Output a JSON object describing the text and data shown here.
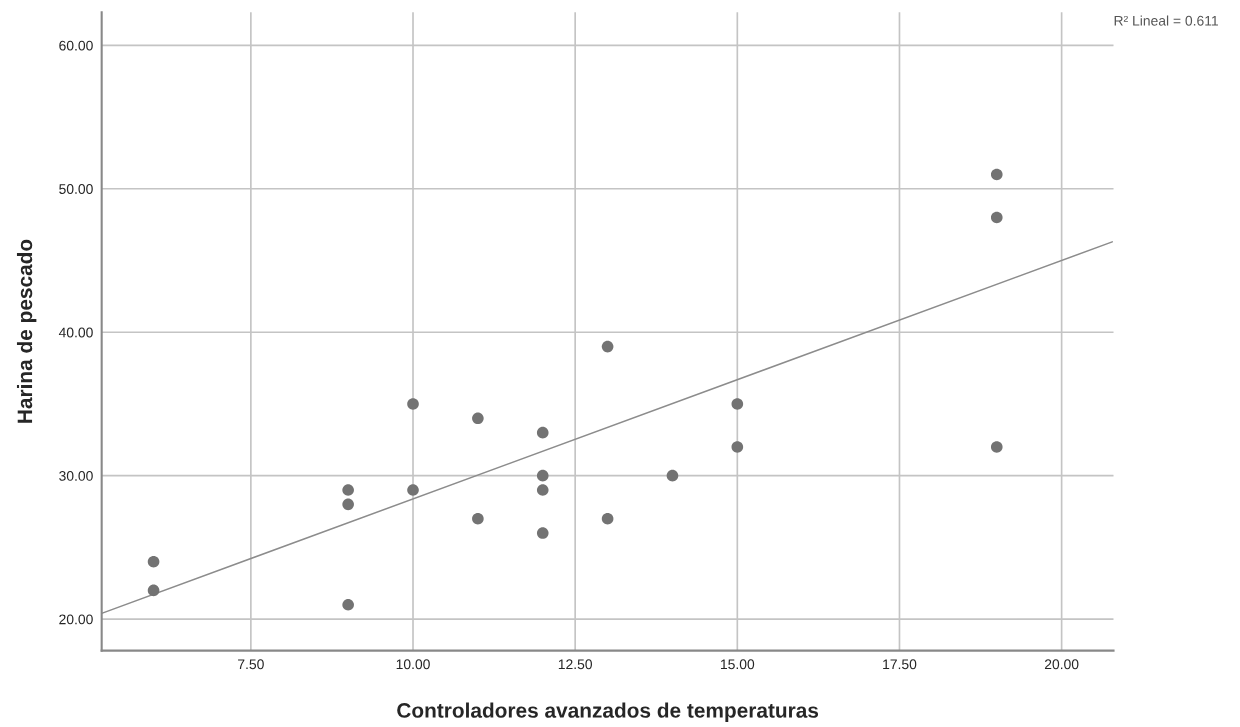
{
  "chart_data": {
    "type": "scatter",
    "xlabel": "Controladores avanzados de temperaturas",
    "ylabel": "Harina de pescado",
    "x": [
      6,
      6,
      9,
      9,
      9,
      10,
      10,
      11,
      11,
      12,
      12,
      12,
      12,
      13,
      13,
      14,
      15,
      15,
      19,
      19,
      19
    ],
    "series": [
      {
        "color": "#737373",
        "marker": "circle",
        "values": [
          24,
          22,
          29,
          28,
          21,
          35,
          29,
          34,
          27,
          33,
          30,
          29,
          26,
          39,
          27,
          30,
          35,
          32,
          51,
          48,
          32
        ]
      },
      {
        "type": "line",
        "color": "#8c8c8c",
        "x": [
          5.2,
          20.78
        ],
        "values": [
          20.4,
          46.3
        ],
        "marker": "none",
        "line_style": "solid"
      }
    ],
    "xlim": [
      5.2,
      20.8
    ],
    "ylim": [
      17.8,
      62.3
    ],
    "xticks": [
      {
        "value": 7.5,
        "label": "7.50"
      },
      {
        "value": 10,
        "label": "10.00"
      },
      {
        "value": 12.5,
        "label": "12.50"
      },
      {
        "value": 15,
        "label": "15.00"
      },
      {
        "value": 17.5,
        "label": "17.50"
      },
      {
        "value": 20,
        "label": "20.00"
      }
    ],
    "yticks": [
      {
        "value": 20,
        "label": "20.00"
      },
      {
        "value": 30,
        "label": "30.00"
      },
      {
        "value": 40,
        "label": "40.00"
      },
      {
        "value": 50,
        "label": "50.00"
      },
      {
        "value": 60,
        "label": "60.00"
      }
    ],
    "grid": true,
    "legend": false,
    "annotations": [
      "R² Lineal = 0.611"
    ]
  }
}
